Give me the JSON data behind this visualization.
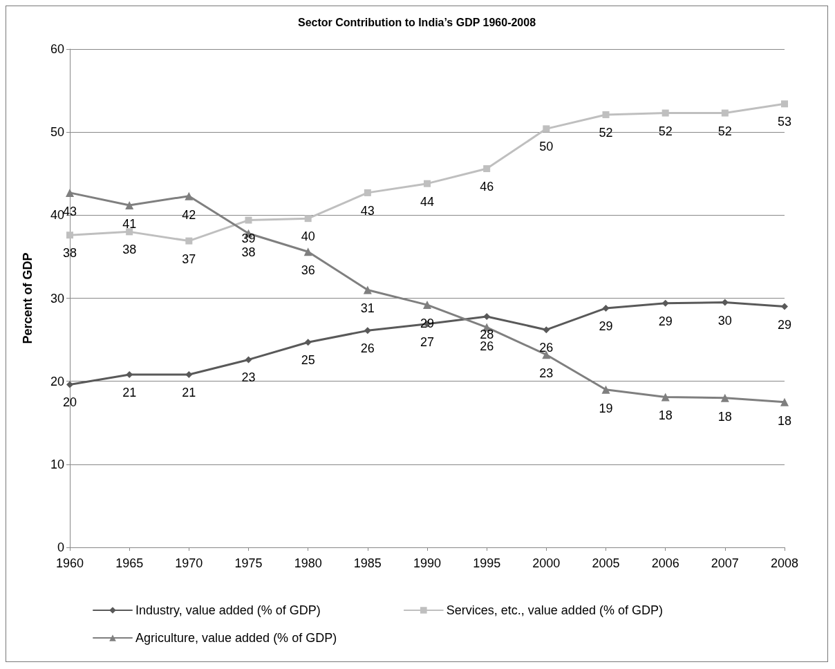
{
  "chart_data": {
    "type": "line",
    "title": "Sector Contribution to India’s GDP 1960-2008",
    "ylabel": "Percent of GDP",
    "categories": [
      "1960",
      "1965",
      "1970",
      "1975",
      "1980",
      "1985",
      "1990",
      "1995",
      "2000",
      "2005",
      "2006",
      "2007",
      "2008"
    ],
    "series": [
      {
        "name": "Industry, value added (% of GDP)",
        "color": "#595959",
        "marker": "diamond",
        "values": [
          19.6,
          20.8,
          20.8,
          22.6,
          24.7,
          26.1,
          26.9,
          27.8,
          26.2,
          28.8,
          29.4,
          29.5,
          29.0
        ],
        "value_labels": [
          "20",
          "21",
          "21",
          "23",
          "25",
          "26",
          "27",
          "28",
          "26",
          "29",
          "29",
          "30",
          "29"
        ]
      },
      {
        "name": "Services, etc., value added (% of GDP)",
        "color": "#bfbfbf",
        "marker": "square",
        "values": [
          37.6,
          38.0,
          36.9,
          39.4,
          39.6,
          42.7,
          43.8,
          45.6,
          50.4,
          52.1,
          52.3,
          52.3,
          53.4
        ],
        "value_labels": [
          "38",
          "38",
          "37",
          "39",
          "40",
          "43",
          "44",
          "46",
          "50",
          "52",
          "52",
          "52",
          "53"
        ]
      },
      {
        "name": "Agriculture, value added (% of GDP)",
        "color": "#7f7f7f",
        "marker": "triangle",
        "values": [
          42.7,
          41.2,
          42.3,
          37.8,
          35.6,
          31.0,
          29.2,
          26.5,
          23.2,
          19.0,
          18.1,
          18.0,
          17.5
        ],
        "value_labels": [
          "43",
          "41",
          "42",
          "38",
          "36",
          "31",
          "29",
          "26",
          "23",
          "19",
          "18",
          "18",
          "18"
        ]
      }
    ],
    "ylim": [
      0,
      60
    ],
    "yticks": [
      0,
      10,
      20,
      30,
      40,
      50,
      60
    ],
    "grid": "y",
    "legend": "bottom",
    "line_style": "solid"
  }
}
